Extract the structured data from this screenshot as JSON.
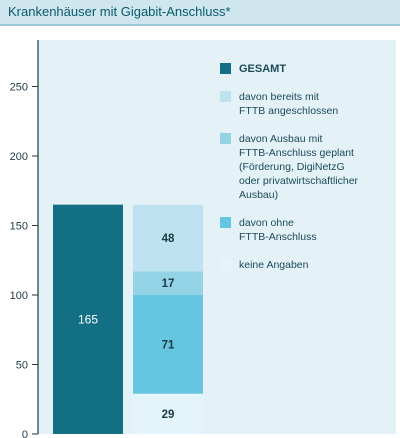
{
  "title": "Krankenhäuser mit Gigabit-Anschluss*",
  "colors": {
    "gesamt": "#136f84",
    "fttb_connected": "#bfe2f0",
    "fttb_planned": "#94d3e6",
    "no_fttb": "#66c6e2",
    "no_info": "#e3f4fa",
    "axis": "#1e3a44"
  },
  "legend": [
    {
      "label": "GESAMT",
      "color_key": "gesamt",
      "bold": true
    },
    {
      "label": "davon bereits mit\nFTTB angeschlossen",
      "color_key": "fttb_connected",
      "bold": false
    },
    {
      "label": "davon Ausbau mit\nFTTB-Anschluss geplant\n(Förderung, DigiNetzG\noder privatwirtschaftlicher\nAusbau)",
      "color_key": "fttb_planned",
      "bold": false
    },
    {
      "label": "davon ohne\nFTTB-Anschluss",
      "color_key": "no_fttb",
      "bold": false
    },
    {
      "label": "keine Angaben",
      "color_key": "no_info",
      "bold": false
    }
  ],
  "chart_data": {
    "type": "bar",
    "title": "Krankenhäuser mit Gigabit-Anschluss*",
    "y_ticks": [
      0,
      50,
      100,
      150,
      200,
      250
    ],
    "ylim": [
      0,
      300
    ],
    "total": {
      "label": "165",
      "value": 165,
      "color_key": "gesamt"
    },
    "stack": [
      {
        "label": "29",
        "value": 29,
        "color_key": "no_info"
      },
      {
        "label": "71",
        "value": 71,
        "color_key": "no_fttb"
      },
      {
        "label": "17",
        "value": 17,
        "color_key": "fttb_planned"
      },
      {
        "label": "48",
        "value": 48,
        "color_key": "fttb_connected"
      }
    ]
  }
}
